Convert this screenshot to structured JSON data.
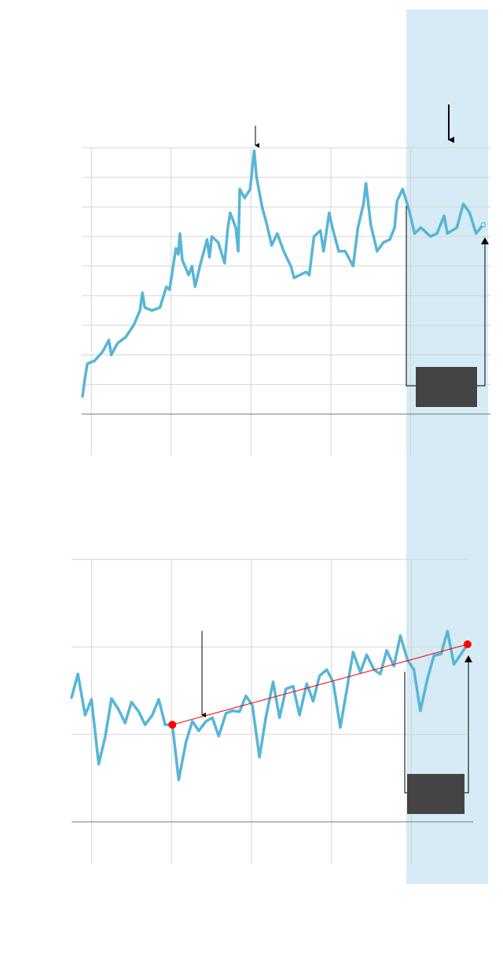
{
  "chart_data": [
    {
      "type": "line",
      "color": "#56b6d6",
      "xlim": [
        -12,
        500
      ],
      "ylim": [
        0,
        90
      ],
      "x_gridlines": [
        0,
        100,
        200,
        300,
        400
      ],
      "y_gridlines": [
        0,
        10,
        20,
        30,
        40,
        50,
        60,
        70,
        80,
        90
      ],
      "x": [
        -11,
        -8,
        -5,
        4,
        14,
        22,
        25,
        33,
        43,
        53,
        61,
        64,
        67,
        76,
        86,
        94,
        98,
        106,
        109,
        111,
        114,
        122,
        126,
        130,
        137,
        145,
        148,
        151,
        159,
        167,
        171,
        174,
        181,
        184,
        186,
        192,
        199,
        202,
        204,
        207,
        214,
        220,
        226,
        233,
        241,
        250,
        254,
        261,
        269,
        273,
        279,
        287,
        291,
        298,
        302,
        310,
        318,
        328,
        334,
        341,
        344,
        350,
        358,
        366,
        374,
        380,
        383,
        390,
        398,
        405,
        413,
        425,
        433,
        442,
        446,
        458,
        466,
        474,
        482,
        491
      ],
      "values": [
        6,
        12,
        17,
        18,
        21,
        25,
        20,
        24,
        26,
        30,
        35,
        41,
        36,
        35,
        36,
        43,
        42,
        56,
        54,
        61,
        52,
        47,
        50,
        43,
        51,
        59,
        53,
        60,
        58,
        51,
        63,
        68,
        63,
        55,
        76,
        73,
        76,
        84,
        89,
        80,
        70,
        64,
        57,
        61,
        55,
        50,
        46,
        47,
        48,
        47,
        60,
        62,
        55,
        68,
        63,
        55,
        55,
        50,
        63,
        71,
        78,
        64,
        55,
        58,
        59,
        63,
        72,
        76,
        69,
        61,
        63,
        60,
        61,
        67,
        61,
        63,
        71,
        68,
        61,
        64
      ]
    },
    {
      "type": "line",
      "color": "#56b6d6",
      "xlim": [
        -25,
        477
      ],
      "ylim": [
        0,
        30
      ],
      "x_gridlines": [
        0,
        100,
        200,
        300,
        400
      ],
      "y_gridlines": [
        0,
        10,
        20,
        30
      ],
      "x": [
        -25,
        -17,
        -8,
        0,
        9,
        17,
        25,
        34,
        42,
        50,
        59,
        67,
        76,
        84,
        92,
        101,
        109,
        118,
        126,
        134,
        143,
        151,
        159,
        168,
        176,
        185,
        193,
        201,
        210,
        218,
        227,
        235,
        243,
        252,
        260,
        269,
        277,
        285,
        294,
        302,
        311,
        319,
        327,
        336,
        344,
        353,
        361,
        369,
        378,
        386,
        395,
        403,
        411,
        420,
        428,
        437,
        445,
        453,
        462,
        470
      ],
      "values": [
        14.2,
        16.9,
        12.2,
        14.0,
        6.6,
        9.7,
        14.1,
        12.8,
        11.3,
        13.7,
        12.6,
        11.1,
        12.2,
        14.0,
        11.1,
        11.1,
        4.8,
        9.1,
        11.5,
        10.4,
        11.5,
        11.9,
        9.8,
        12.4,
        12.7,
        12.6,
        14.4,
        13.3,
        7.4,
        12.0,
        16.0,
        11.9,
        15.2,
        15.5,
        12.2,
        15.8,
        13.8,
        16.7,
        17.4,
        16.0,
        10.8,
        15.1,
        19.4,
        17.1,
        19.1,
        17.4,
        16.9,
        19.6,
        17.8,
        21.3,
        18.5,
        17.4,
        12.7,
        16.4,
        19.0,
        19.2,
        21.8,
        18.0,
        19.2,
        20.3
      ],
      "trend": {
        "color": "#ff0000",
        "x": [
          101,
          470
        ],
        "values": [
          11.1,
          20.3
        ]
      }
    }
  ]
}
